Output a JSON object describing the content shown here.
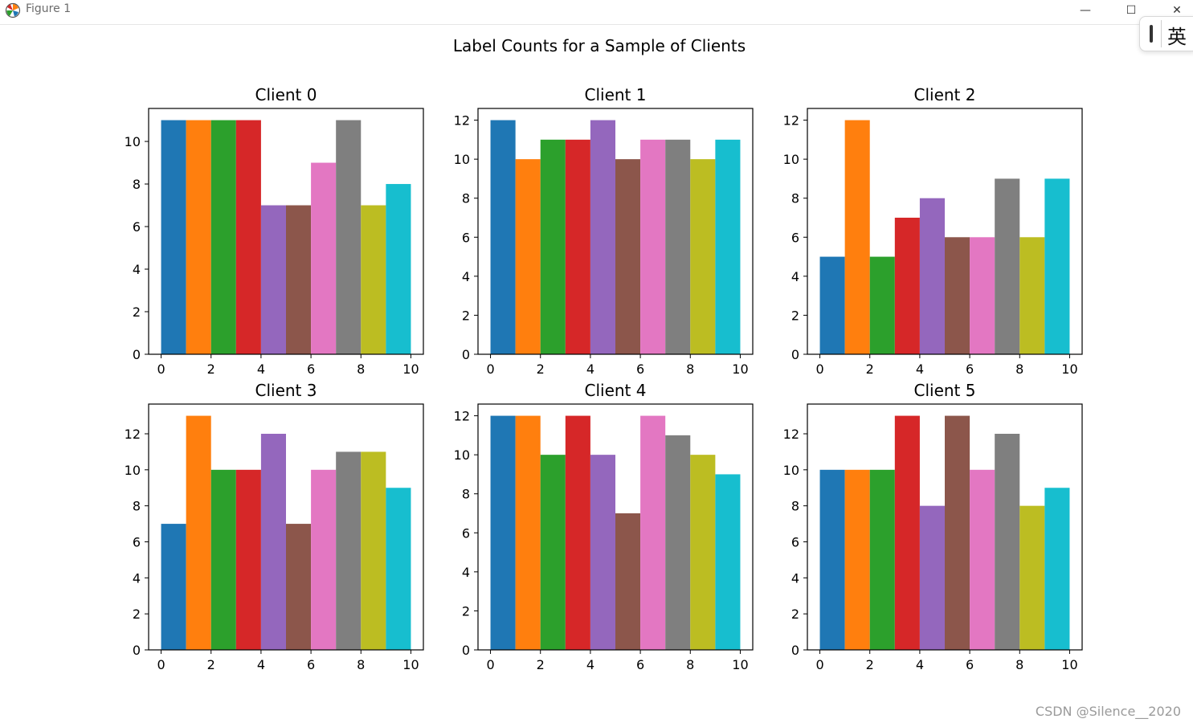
{
  "window": {
    "title": "Figure 1",
    "minimize_label": "—",
    "maximize_label": "☐",
    "close_label": "✕"
  },
  "ime": {
    "label": "英"
  },
  "watermark": "CSDN @Silence__2020",
  "colors": [
    "#1f77b4",
    "#ff7f0e",
    "#2ca02c",
    "#d62728",
    "#9467bd",
    "#8c564b",
    "#e377c2",
    "#7f7f7f",
    "#bcbd22",
    "#17becf"
  ],
  "chart_data": {
    "type": "bar",
    "suptitle": "Label Counts for a Sample of Clients",
    "categories": [
      0,
      1,
      2,
      3,
      4,
      5,
      6,
      7,
      8,
      9
    ],
    "xlim": [
      -0.5,
      10.5
    ],
    "xticks": [
      0,
      2,
      4,
      6,
      8,
      10
    ],
    "grid": false,
    "panels": [
      {
        "title": "Client 0",
        "values": [
          11,
          11,
          11,
          11,
          7,
          7,
          9,
          11,
          7,
          8
        ],
        "ylim": [
          0,
          11.55
        ],
        "yticks": [
          0,
          2,
          4,
          6,
          8,
          10
        ]
      },
      {
        "title": "Client 1",
        "values": [
          12,
          10,
          11,
          11,
          12,
          10,
          11,
          11,
          10,
          11
        ],
        "ylim": [
          0,
          12.6
        ],
        "yticks": [
          0,
          2,
          4,
          6,
          8,
          10,
          12
        ]
      },
      {
        "title": "Client 2",
        "values": [
          5,
          12,
          5,
          7,
          8,
          6,
          6,
          9,
          6,
          9
        ],
        "ylim": [
          0,
          12.6
        ],
        "yticks": [
          0,
          2,
          4,
          6,
          8,
          10,
          12
        ]
      },
      {
        "title": "Client 3",
        "values": [
          7,
          13,
          10,
          10,
          12,
          7,
          10,
          11,
          11,
          9
        ],
        "ylim": [
          0,
          13.65
        ],
        "yticks": [
          0,
          2,
          4,
          6,
          8,
          10,
          12
        ]
      },
      {
        "title": "Client 4",
        "values": [
          12,
          12,
          10,
          12,
          10,
          7,
          12,
          11,
          10,
          9
        ],
        "ylim": [
          0,
          12.6
        ],
        "yticks": [
          0,
          2,
          4,
          6,
          8,
          10,
          12
        ]
      },
      {
        "title": "Client 5",
        "values": [
          10,
          10,
          10,
          13,
          8,
          13,
          10,
          12,
          8,
          9
        ],
        "ylim": [
          0,
          13.65
        ],
        "yticks": [
          0,
          2,
          4,
          6,
          8,
          10,
          12
        ]
      }
    ]
  }
}
